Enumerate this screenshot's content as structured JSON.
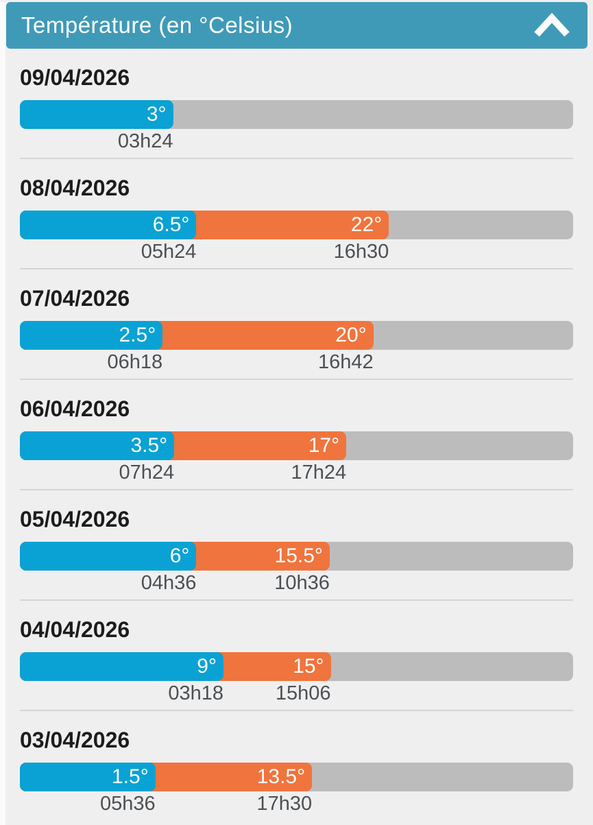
{
  "header": {
    "title": "Température (en °Celsius)",
    "collapse_icon": "chevron-up"
  },
  "colors": {
    "header_bg": "#3f9ab8",
    "min_segment": "#0aa2d4",
    "max_segment": "#f0743d",
    "track": "#bdbcbc",
    "page_bg": "#f0efef",
    "bar_label_text": "#ffffff",
    "date_text": "#1c1c1c",
    "time_text": "#4b5054",
    "divider": "#d6d4d4"
  },
  "chart_data": {
    "type": "bar",
    "orientation": "horizontal",
    "title": "Température (en °Celsius)",
    "unit": "°Celsius",
    "series_meaning": {
      "blue_segment": "température minimale et son heure",
      "orange_segment": "température maximale et son heure"
    },
    "days": [
      {
        "date": "09/04/2026",
        "min": {
          "temp_c": 3,
          "label": "3°",
          "time": "03h24",
          "end_pct": 27.7
        },
        "max": null
      },
      {
        "date": "08/04/2026",
        "min": {
          "temp_c": 6.5,
          "label": "6.5°",
          "time": "05h24",
          "end_pct": 31.9
        },
        "max": {
          "temp_c": 22,
          "label": "22°",
          "time": "16h30",
          "end_pct": 66.7
        }
      },
      {
        "date": "07/04/2026",
        "min": {
          "temp_c": 2.5,
          "label": "2.5°",
          "time": "06h18",
          "end_pct": 25.8
        },
        "max": {
          "temp_c": 20,
          "label": "20°",
          "time": "16h42",
          "end_pct": 63.9
        }
      },
      {
        "date": "06/04/2026",
        "min": {
          "temp_c": 3.5,
          "label": "3.5°",
          "time": "07h24",
          "end_pct": 27.9
        },
        "max": {
          "temp_c": 17,
          "label": "17°",
          "time": "17h24",
          "end_pct": 59.0
        }
      },
      {
        "date": "05/04/2026",
        "min": {
          "temp_c": 6,
          "label": "6°",
          "time": "04h36",
          "end_pct": 31.9
        },
        "max": {
          "temp_c": 15.5,
          "label": "15.5°",
          "time": "10h36",
          "end_pct": 56.0
        }
      },
      {
        "date": "04/04/2026",
        "min": {
          "temp_c": 9,
          "label": "9°",
          "time": "03h18",
          "end_pct": 36.8
        },
        "max": {
          "temp_c": 15,
          "label": "15°",
          "time": "15h06",
          "end_pct": 56.2
        }
      },
      {
        "date": "03/04/2026",
        "min": {
          "temp_c": 1.5,
          "label": "1.5°",
          "time": "05h36",
          "end_pct": 24.5
        },
        "max": {
          "temp_c": 13.5,
          "label": "13.5°",
          "time": "17h30",
          "end_pct": 52.8
        }
      }
    ]
  }
}
